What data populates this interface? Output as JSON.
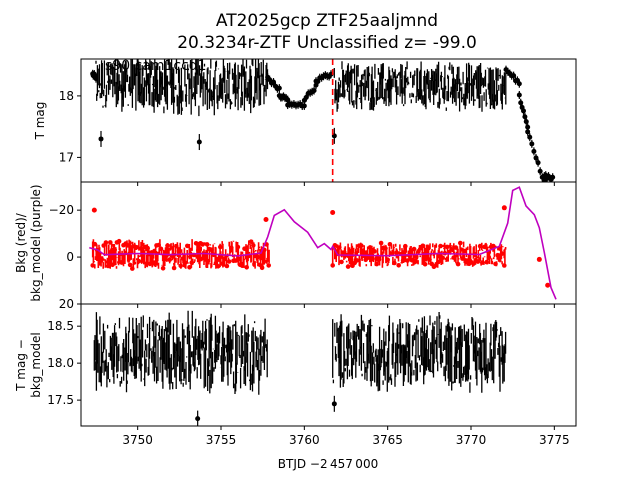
{
  "figure": {
    "title_line1": "AT2025gcp  ZTF25aaljmnd",
    "title_line2": "20.3234r-ZTF Unclassified z= -99.0",
    "annotation": "s90 cam1ccd1",
    "xlabel": "BTJD −2 457 000"
  },
  "chart_data": [
    {
      "type": "scatter",
      "panel": "top",
      "ylabel": "T mag",
      "y_inverted": true,
      "xlim": [
        3746.6,
        3776.3
      ],
      "ylim": [
        18.6,
        16.6
      ],
      "yticks": [
        17,
        18
      ],
      "ytick_labels": [
        "17",
        "18"
      ],
      "marker_color": "#000000",
      "vline": {
        "x": 3761.7,
        "color": "#ff0000",
        "style": "dashed"
      },
      "segments": [
        {
          "x": [
            3747.3,
            3747.5
          ],
          "y": [
            18.35,
            18.3
          ]
        },
        {
          "x": [
            3747.5,
            3757.8
          ],
          "band": [
            17.6,
            18.7
          ],
          "center": 18.2
        },
        {
          "x": [
            3757.8,
            3758.5
          ],
          "y": [
            18.3,
            18.1
          ]
        },
        {
          "x": [
            3758.5,
            3759.0
          ],
          "y": [
            18.0,
            17.95
          ]
        },
        {
          "x": [
            3759.0,
            3760.0
          ],
          "y": [
            17.85,
            17.85
          ]
        },
        {
          "x": [
            3760.0,
            3760.7
          ],
          "y": [
            17.95,
            18.15
          ]
        },
        {
          "x": [
            3760.7,
            3761.6
          ],
          "y": [
            18.25,
            18.35
          ]
        },
        {
          "x": [
            3761.8,
            3772.1
          ],
          "band": [
            17.7,
            18.6
          ],
          "center": 18.15
        },
        {
          "x": [
            3772.1,
            3772.9
          ],
          "y": [
            18.45,
            18.2
          ]
        },
        {
          "x": [
            3772.9,
            3773.4
          ],
          "y": [
            18.0,
            17.5
          ]
        },
        {
          "x": [
            3773.4,
            3774.4
          ],
          "y": [
            17.4,
            16.6
          ]
        },
        {
          "x": [
            3774.4,
            3774.9
          ],
          "y": [
            16.7,
            16.65
          ]
        }
      ],
      "outliers": [
        {
          "x": 3747.8,
          "y": 17.3
        },
        {
          "x": 3753.7,
          "y": 17.25
        },
        {
          "x": 3761.8,
          "y": 17.35
        }
      ]
    },
    {
      "type": "scatter",
      "panel": "middle",
      "ylabel": "Bkg (red)/\nbkg_model (purple)",
      "xlim": [
        3746.6,
        3776.3
      ],
      "ylim": [
        -32,
        20
      ],
      "yticks": [
        20,
        0,
        -20
      ],
      "ytick_labels": [
        "20",
        "0",
        "−20"
      ],
      "series": [
        {
          "name": "Bkg",
          "color": "#ff0000",
          "segments": [
            {
              "x": [
                3747.3,
                3757.9
              ],
              "band": [
                -9,
                5
              ],
              "center": -1
            },
            {
              "x": [
                3761.7,
                3772.1
              ],
              "band": [
                -7,
                5
              ],
              "center": -1
            }
          ],
          "points": [
            {
              "x": 3747.4,
              "y": -20
            },
            {
              "x": 3757.7,
              "y": -16
            },
            {
              "x": 3761.7,
              "y": -19
            },
            {
              "x": 3772.0,
              "y": -21
            },
            {
              "x": 3774.1,
              "y": 1
            },
            {
              "x": 3774.6,
              "y": 12
            }
          ]
        },
        {
          "name": "bkg_model",
          "color": "#bf00bf",
          "x": [
            3747.1,
            3747.6,
            3748.0,
            3750.0,
            3752.0,
            3754.0,
            3756.0,
            3757.4,
            3757.8,
            3758.2,
            3758.8,
            3759.4,
            3760.2,
            3760.8,
            3761.2,
            3761.6,
            3761.7,
            3762.0,
            3765.0,
            3768.0,
            3770.5,
            3771.7,
            3772.2,
            3772.5,
            3772.9,
            3773.3,
            3773.8,
            3774.1,
            3774.4,
            3774.8,
            3775.1
          ],
          "y": [
            -4,
            -3,
            -1,
            -1,
            -1.5,
            -1,
            -1,
            -2,
            -8,
            -18,
            -20,
            -15,
            -10,
            -4,
            -6,
            -3,
            -5,
            -1,
            -1,
            -1,
            -1,
            -4,
            -15,
            -28,
            -30,
            -22,
            -18,
            -12,
            -2,
            13,
            18
          ]
        }
      ]
    },
    {
      "type": "scatter",
      "panel": "bottom",
      "ylabel": "T mag −\nbkg_model",
      "y_inverted": true,
      "xlim": [
        3746.6,
        3776.3
      ],
      "ylim": [
        18.8,
        17.15
      ],
      "yticks": [
        17.5,
        18.0,
        18.5
      ],
      "ytick_labels": [
        "17.5",
        "18.0",
        "18.5"
      ],
      "marker_color": "#000000",
      "segments": [
        {
          "x": [
            3747.4,
            3757.8
          ],
          "band": [
            17.55,
            18.75
          ],
          "center": 18.15
        },
        {
          "x": [
            3761.7,
            3772.1
          ],
          "band": [
            17.6,
            18.75
          ],
          "center": 18.15
        }
      ],
      "outliers": [
        {
          "x": 3753.6,
          "y": 17.25
        },
        {
          "x": 3761.8,
          "y": 17.45
        }
      ],
      "xticks": [
        3750,
        3755,
        3760,
        3765,
        3770,
        3775
      ],
      "xtick_labels": [
        "3750",
        "3755",
        "3760",
        "3765",
        "3770",
        "3775"
      ]
    }
  ]
}
